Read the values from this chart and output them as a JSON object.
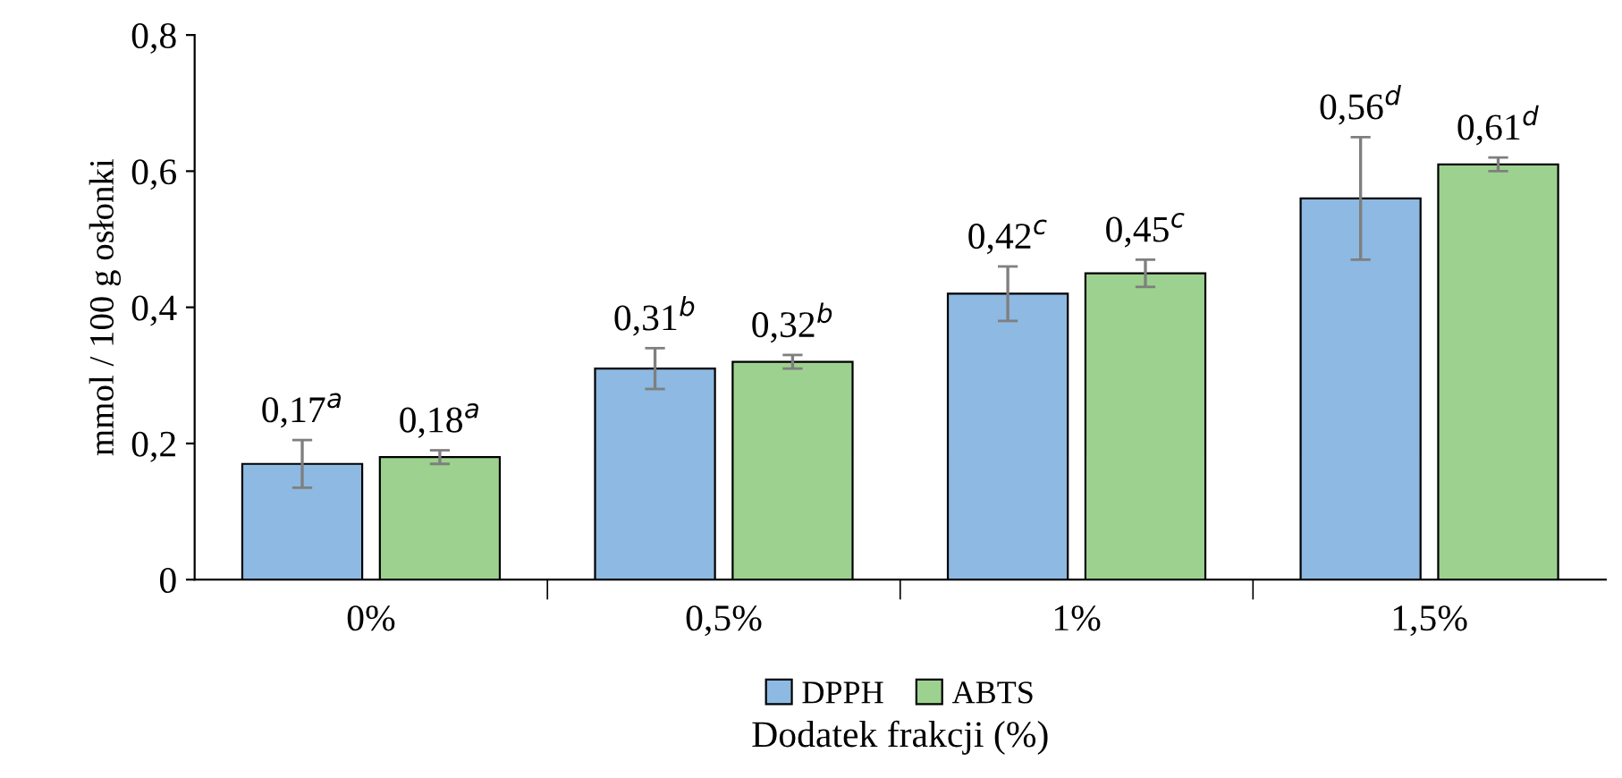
{
  "chart_data": {
    "type": "bar",
    "xlabel": "Dodatek frakcji (%)",
    "ylabel": "mmol / 100 g osłonki",
    "categories": [
      "0%",
      "0,5%",
      "1%",
      "1,5%"
    ],
    "series": [
      {
        "name": "DPPH",
        "color": "#8db9e2",
        "values": [
          0.17,
          0.31,
          0.42,
          0.56
        ],
        "errors": [
          0.035,
          0.03,
          0.04,
          0.09
        ],
        "value_labels": [
          "0,17$^{a}$",
          "0,31$^{b}$",
          "0,42$^{c}$",
          "0,56$^{d}$"
        ]
      },
      {
        "name": "ABTS",
        "color": "#9dd18f",
        "values": [
          0.18,
          0.32,
          0.45,
          0.61
        ],
        "errors": [
          0.01,
          0.01,
          0.02,
          0.01
        ],
        "value_labels": [
          "0,18$^{a}$",
          "0,32$^{b}$",
          "0,45$^{c}$",
          "0,61$^{d}$"
        ]
      }
    ],
    "ylim": [
      0,
      0.8
    ],
    "yticks": [
      {
        "value": 0,
        "label": "0"
      },
      {
        "value": 0.2,
        "label": "0,2"
      },
      {
        "value": 0.4,
        "label": "0,4"
      },
      {
        "value": 0.6,
        "label": "0,6"
      },
      {
        "value": 0.8,
        "label": "0,8"
      }
    ],
    "grid": false,
    "legend": "bottom"
  }
}
